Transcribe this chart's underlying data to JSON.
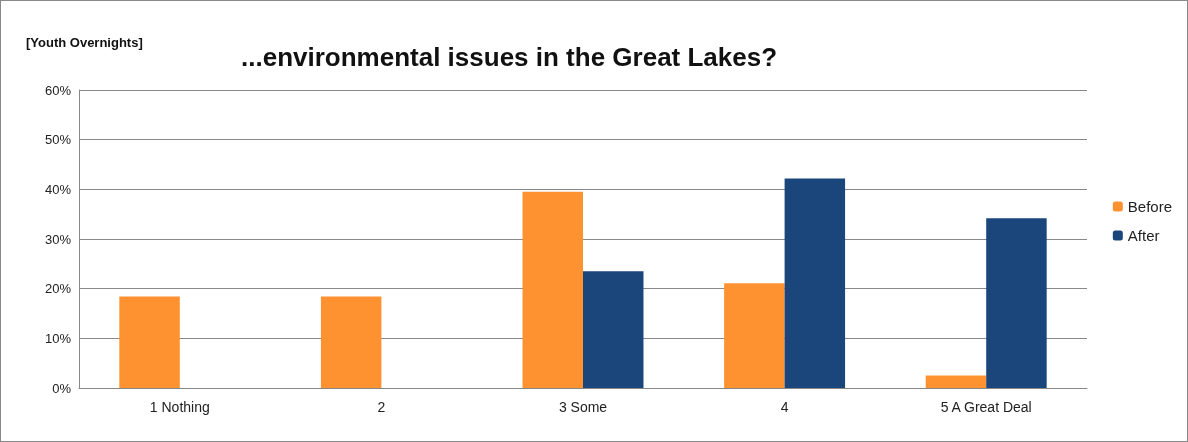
{
  "chart_data": {
    "type": "bar",
    "title": "...environmental issues in the Great Lakes?",
    "annotations": [
      "[Youth Overnights]"
    ],
    "categories": [
      "1 Nothing",
      "2",
      "3 Some",
      "4",
      "5 A Great Deal"
    ],
    "series": [
      {
        "name": "Before",
        "color": "#fe9230",
        "values": [
          18.4,
          18.4,
          39.5,
          21.1,
          2.5
        ]
      },
      {
        "name": "After",
        "color": "#1b467c",
        "values": [
          0,
          0,
          23.5,
          42.2,
          34.2
        ]
      }
    ],
    "ylim": [
      0,
      60
    ],
    "yticks": [
      {
        "value": 0,
        "label": "0%"
      },
      {
        "value": 10,
        "label": "10%"
      },
      {
        "value": 20,
        "label": "20%"
      },
      {
        "value": 30,
        "label": "30%"
      },
      {
        "value": 40,
        "label": "40%"
      },
      {
        "value": 50,
        "label": "50%"
      },
      {
        "value": 60,
        "label": "60%"
      }
    ],
    "grid": "y",
    "legend": "right"
  }
}
